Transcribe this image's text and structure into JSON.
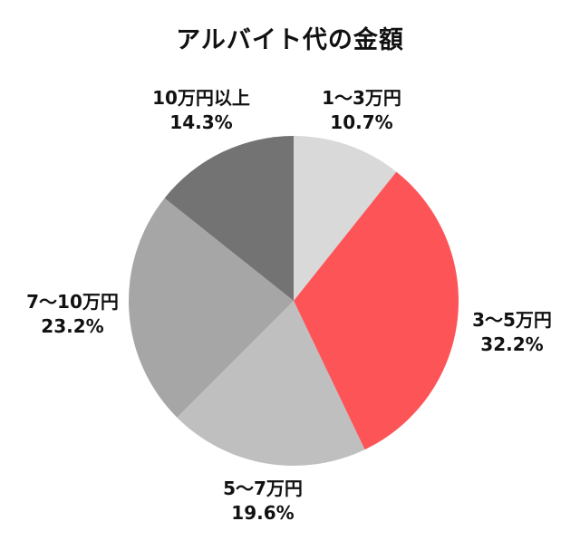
{
  "chart_data": {
    "type": "pie",
    "title": "アルバイト代の金額",
    "start_angle_deg": 0,
    "direction": "clockwise",
    "slices": [
      {
        "label": "1～3万円",
        "value": 10.7,
        "value_label": "10.7%",
        "color": "#d9d9d9"
      },
      {
        "label": "3～5万円",
        "value": 32.2,
        "value_label": "32.2%",
        "color": "#fd5458"
      },
      {
        "label": "5～7万円",
        "value": 19.6,
        "value_label": "19.6%",
        "color": "#bfbfbf"
      },
      {
        "label": "7～10万円",
        "value": 23.2,
        "value_label": "23.2%",
        "color": "#a6a6a6"
      },
      {
        "label": "10万円以上",
        "value": 14.3,
        "value_label": "14.3%",
        "color": "#737373"
      }
    ]
  }
}
